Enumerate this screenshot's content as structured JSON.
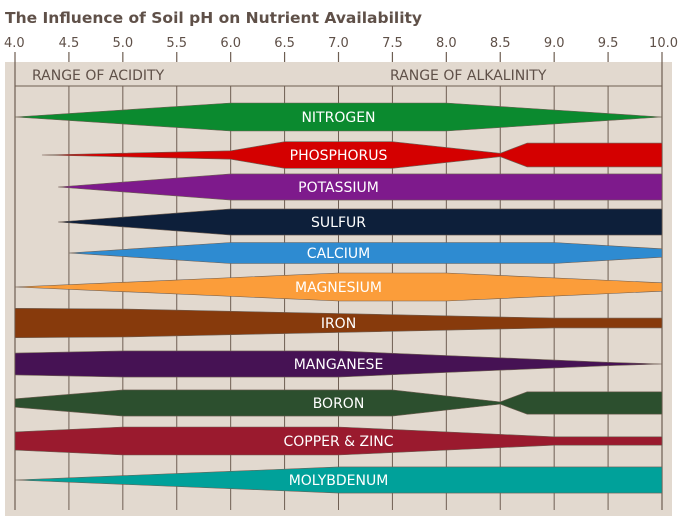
{
  "title": "The Influence of Soil pH on Nutrient Availability",
  "axis": {
    "ticks": [
      "4.0",
      "4.5",
      "5.0",
      "5.5",
      "6.0",
      "6.5",
      "7.0",
      "7.5",
      "8.0",
      "8.5",
      "9.0",
      "9.5",
      "10.0"
    ],
    "range": [
      4.0,
      10.0
    ]
  },
  "ranges": {
    "acidity": "RANGE OF ACIDITY",
    "alkalinity": "RANGE OF ALKALINITY"
  },
  "colors": {
    "background": "#e2d9cf",
    "grid": "#6e5e52",
    "title": "#5f5048",
    "label": "#ffffff"
  },
  "chart_data": {
    "type": "band-width",
    "value_meaning": "relative availability (band thickness, 0-1) by soil pH",
    "nutrients": [
      {
        "name": "NITROGEN",
        "color": "#0b8a2f",
        "profile": [
          [
            4.0,
            0
          ],
          [
            6.0,
            1
          ],
          [
            8.0,
            1
          ],
          [
            10.0,
            0
          ]
        ]
      },
      {
        "name": "PHOSPHORUS",
        "color": "#d40000",
        "profile": [
          [
            4.25,
            0
          ],
          [
            6.0,
            0.3
          ],
          [
            6.5,
            0.95
          ],
          [
            7.5,
            0.95
          ],
          [
            8.5,
            0.12
          ],
          [
            8.75,
            0.85
          ],
          [
            10.0,
            0.85
          ]
        ]
      },
      {
        "name": "POTASSIUM",
        "color": "#7e1a8c",
        "profile": [
          [
            4.4,
            0
          ],
          [
            6.0,
            0.93
          ],
          [
            10.0,
            0.93
          ]
        ]
      },
      {
        "name": "SULFUR",
        "color": "#0d1f3a",
        "profile": [
          [
            4.4,
            0
          ],
          [
            6.0,
            0.93
          ],
          [
            10.0,
            0.93
          ]
        ]
      },
      {
        "name": "CALCIUM",
        "color": "#2e8bd1",
        "profile": [
          [
            4.5,
            0
          ],
          [
            6.0,
            0.75
          ],
          [
            9.0,
            0.75
          ],
          [
            10.0,
            0.3
          ]
        ]
      },
      {
        "name": "MAGNESIUM",
        "color": "#fb9d3a",
        "profile": [
          [
            4.0,
            0
          ],
          [
            7.0,
            1
          ],
          [
            8.0,
            1
          ],
          [
            10.0,
            0.3
          ]
        ]
      },
      {
        "name": "IRON",
        "color": "#873a0c",
        "profile": [
          [
            4.0,
            1.05
          ],
          [
            5.0,
            1
          ],
          [
            9.0,
            0.35
          ],
          [
            10.0,
            0.35
          ]
        ]
      },
      {
        "name": "MANGANESE",
        "color": "#461254",
        "profile": [
          [
            4.0,
            0.78
          ],
          [
            5.0,
            0.93
          ],
          [
            7.0,
            0.93
          ],
          [
            9.5,
            0.12
          ],
          [
            10.0,
            0
          ]
        ]
      },
      {
        "name": "BORON",
        "color": "#2c4f2e",
        "profile": [
          [
            4.0,
            0.3
          ],
          [
            5.0,
            0.93
          ],
          [
            7.5,
            0.93
          ],
          [
            8.5,
            0.08
          ],
          [
            8.75,
            0.8
          ],
          [
            10.0,
            0.8
          ]
        ]
      },
      {
        "name": "COPPER & ZINC",
        "color": "#9a1a2e",
        "profile": [
          [
            4.0,
            0.65
          ],
          [
            5.0,
            1
          ],
          [
            7.0,
            1
          ],
          [
            9.0,
            0.3
          ],
          [
            10.0,
            0.3
          ]
        ]
      },
      {
        "name": "MOLYBDENUM",
        "color": "#00a19a",
        "profile": [
          [
            4.0,
            0
          ],
          [
            7.0,
            0.93
          ],
          [
            10.0,
            0.93
          ]
        ]
      }
    ]
  }
}
